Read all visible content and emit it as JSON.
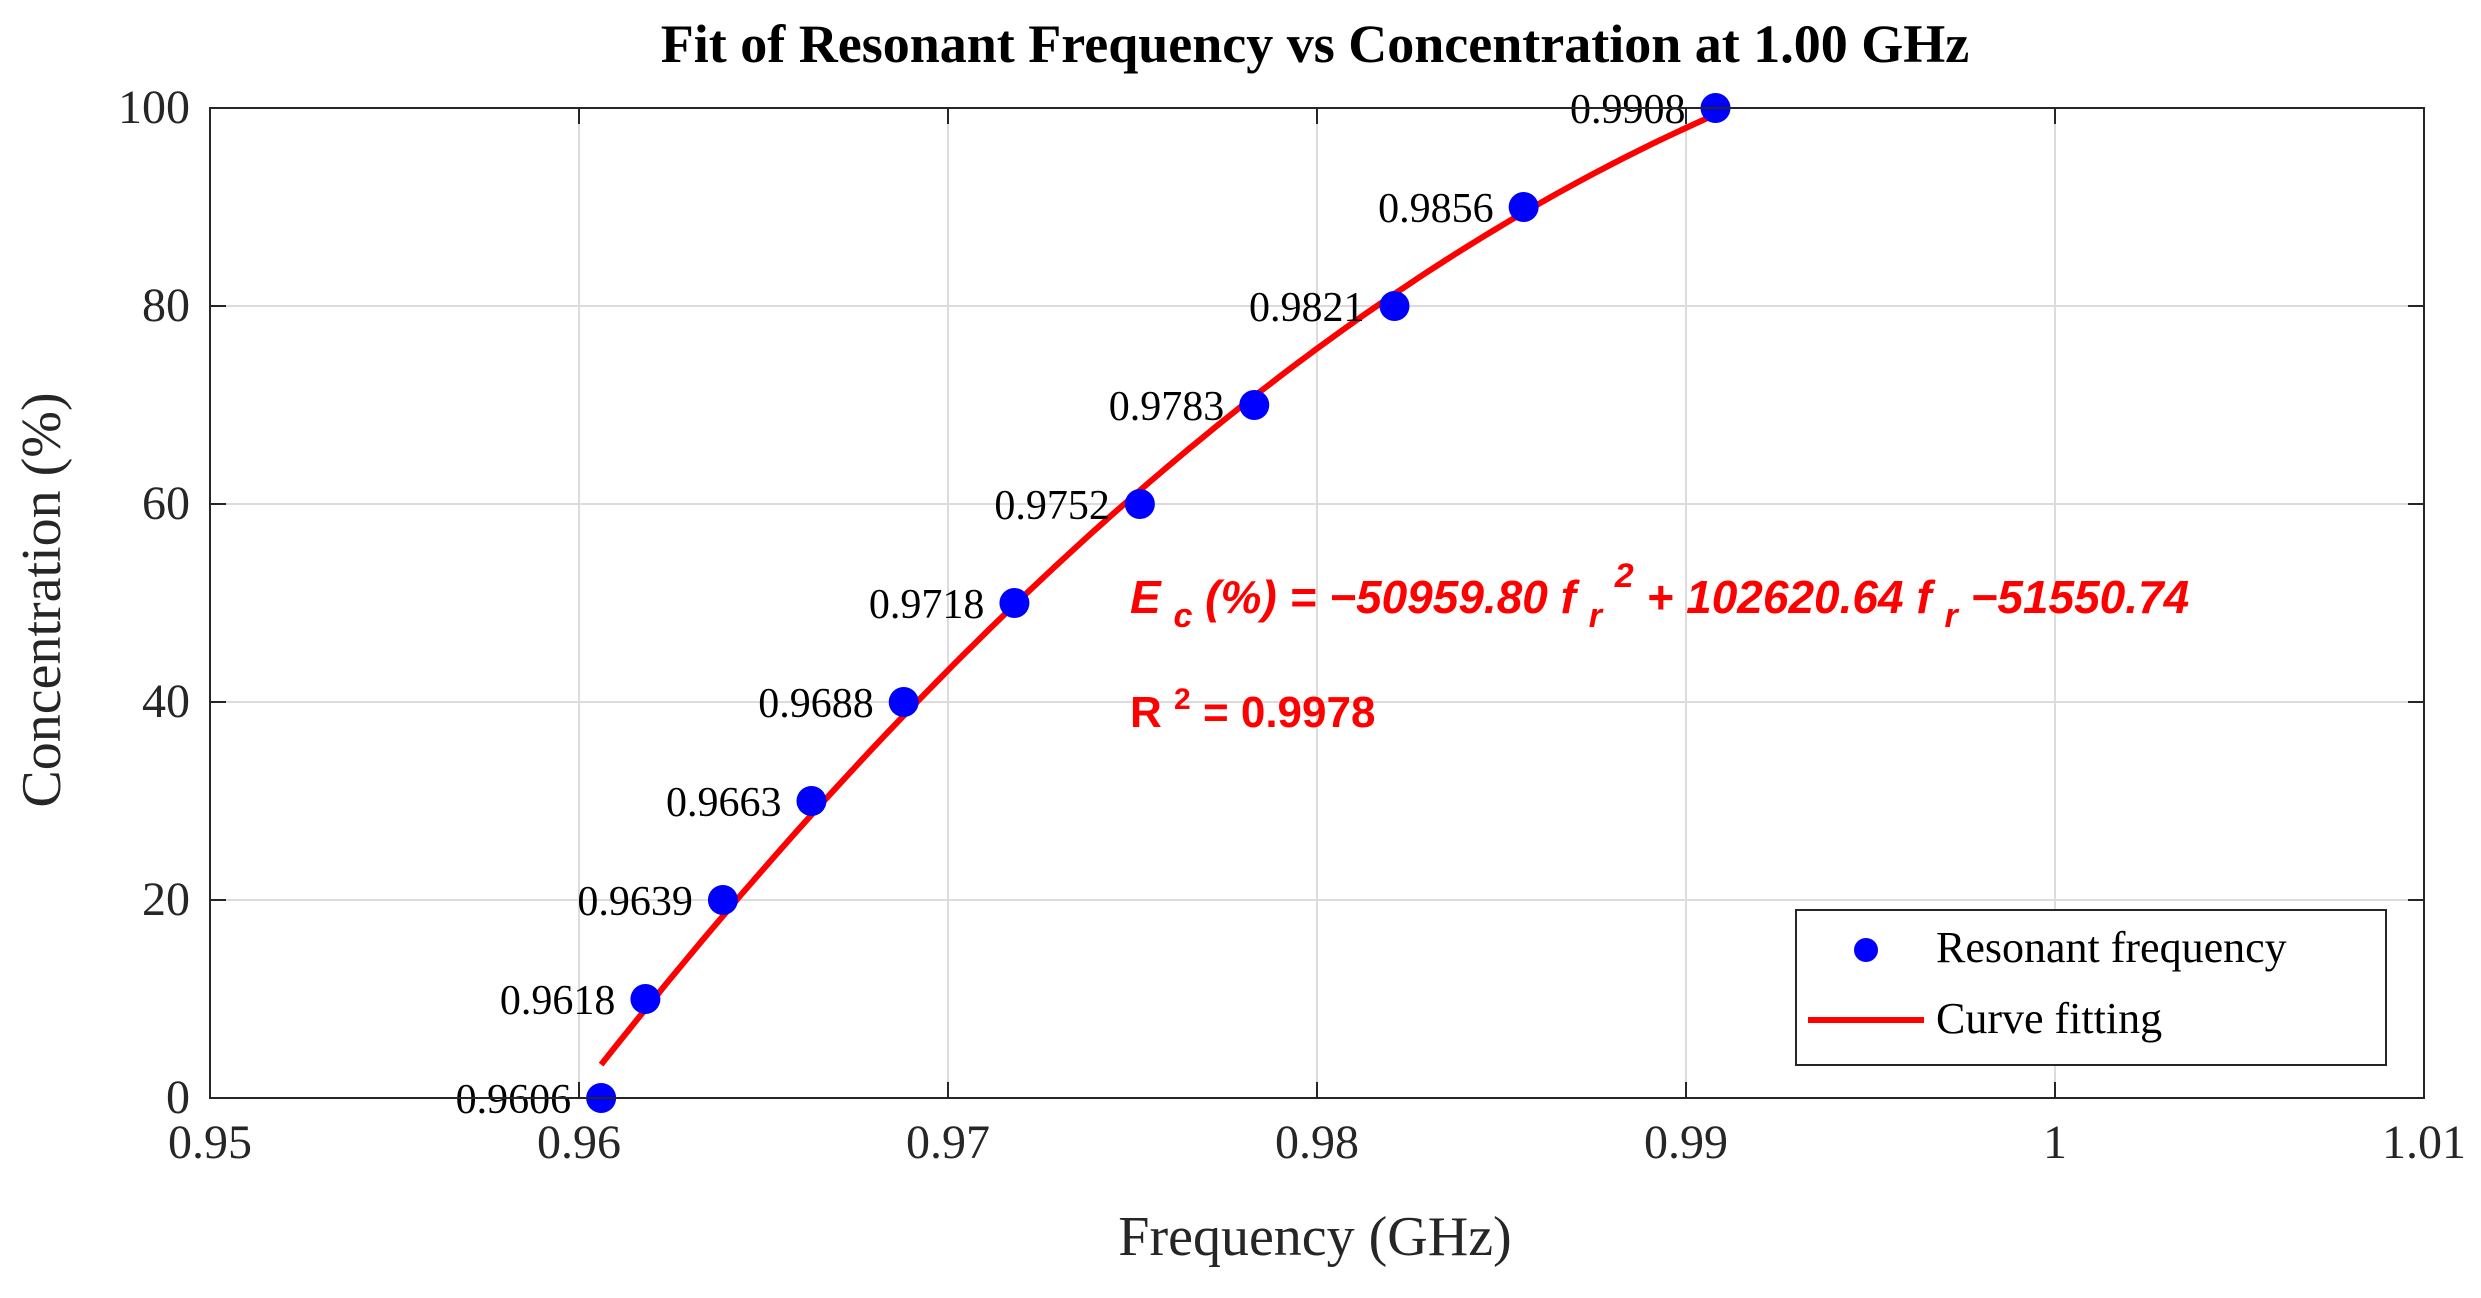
{
  "chart_data": {
    "type": "scatter",
    "title": "Fit of Resonant Frequency vs Concentration at 1.00 GHz",
    "xlabel": "Frequency (GHz)",
    "ylabel": "Concentration (%)",
    "xlim": [
      0.95,
      1.01
    ],
    "ylim": [
      0,
      100
    ],
    "x_ticks": [
      0.95,
      0.96,
      0.97,
      0.98,
      0.99,
      1.0,
      1.01
    ],
    "x_tick_labels": [
      "0.95",
      "0.96",
      "0.97",
      "0.98",
      "0.99",
      "1",
      "1.01"
    ],
    "y_ticks": [
      0,
      20,
      40,
      60,
      80,
      100
    ],
    "y_tick_labels": [
      "0",
      "20",
      "40",
      "60",
      "80",
      "100"
    ],
    "grid": true,
    "series": [
      {
        "name": "Resonant frequency",
        "kind": "scatter",
        "color": "#0000ff",
        "x": [
          0.9606,
          0.9618,
          0.9639,
          0.9663,
          0.9688,
          0.9718,
          0.9752,
          0.9783,
          0.9821,
          0.9856,
          0.9908
        ],
        "y": [
          0,
          10,
          20,
          30,
          40,
          50,
          60,
          70,
          80,
          90,
          100
        ],
        "labels": [
          "0.9606",
          "0.9618",
          "0.9639",
          "0.9663",
          "0.9688",
          "0.9718",
          "0.9752",
          "0.9783",
          "0.9821",
          "0.9856",
          "0.9908"
        ]
      },
      {
        "name": "Curve fitting",
        "kind": "line",
        "color": "#ff0000",
        "coefficients": {
          "a": -50959.8,
          "b": 102620.64,
          "c": -51550.74
        },
        "x_range": [
          0.9606,
          0.9908
        ]
      }
    ],
    "legend_position": "bottom-right",
    "annotations": {
      "equation_lhs": "E",
      "equation_lhs_sub": "c",
      "equation_part1": " (%) = −50959.80 f",
      "equation_sub1": "r",
      "equation_sup1": "2",
      "equation_part2": " + 102620.64 f",
      "equation_sub2": "r",
      "equation_part3": " −51550.74",
      "r2_base": "R",
      "r2_sup": "2",
      "r2_value": " = 0.9978",
      "color": "#ff0000"
    }
  }
}
